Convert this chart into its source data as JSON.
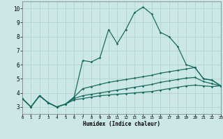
{
  "xlabel": "Humidex (Indice chaleur)",
  "background_color": "#cce8e6",
  "grid_color": "#b0d4d0",
  "line_color": "#1a6b5e",
  "xlim": [
    0,
    23
  ],
  "ylim": [
    2.5,
    10.5
  ],
  "x": [
    0,
    1,
    2,
    3,
    4,
    5,
    6,
    7,
    8,
    9,
    10,
    11,
    12,
    13,
    14,
    15,
    16,
    17,
    18,
    19,
    20,
    21,
    22,
    23
  ],
  "y_main": [
    3.6,
    3.0,
    3.8,
    3.3,
    3.0,
    3.2,
    3.7,
    6.3,
    6.2,
    6.5,
    8.5,
    7.5,
    8.5,
    9.7,
    10.1,
    9.6,
    8.3,
    8.0,
    7.3,
    6.0,
    5.8,
    5.0,
    4.9,
    4.5
  ],
  "y_upper": [
    3.6,
    3.0,
    3.8,
    3.3,
    3.0,
    3.2,
    3.7,
    4.3,
    4.45,
    4.6,
    4.75,
    4.85,
    4.95,
    5.05,
    5.15,
    5.25,
    5.4,
    5.5,
    5.6,
    5.7,
    5.8,
    5.0,
    4.9,
    4.5
  ],
  "y_mid": [
    3.6,
    3.0,
    3.8,
    3.3,
    3.0,
    3.2,
    3.6,
    3.8,
    3.9,
    4.0,
    4.1,
    4.2,
    4.3,
    4.4,
    4.5,
    4.6,
    4.75,
    4.85,
    4.95,
    5.05,
    5.1,
    4.8,
    4.65,
    4.5
  ],
  "y_base": [
    3.6,
    3.0,
    3.8,
    3.3,
    3.0,
    3.2,
    3.5,
    3.6,
    3.7,
    3.8,
    3.85,
    3.9,
    3.95,
    4.0,
    4.05,
    4.1,
    4.2,
    4.3,
    4.4,
    4.5,
    4.55,
    4.5,
    4.45,
    4.5
  ]
}
